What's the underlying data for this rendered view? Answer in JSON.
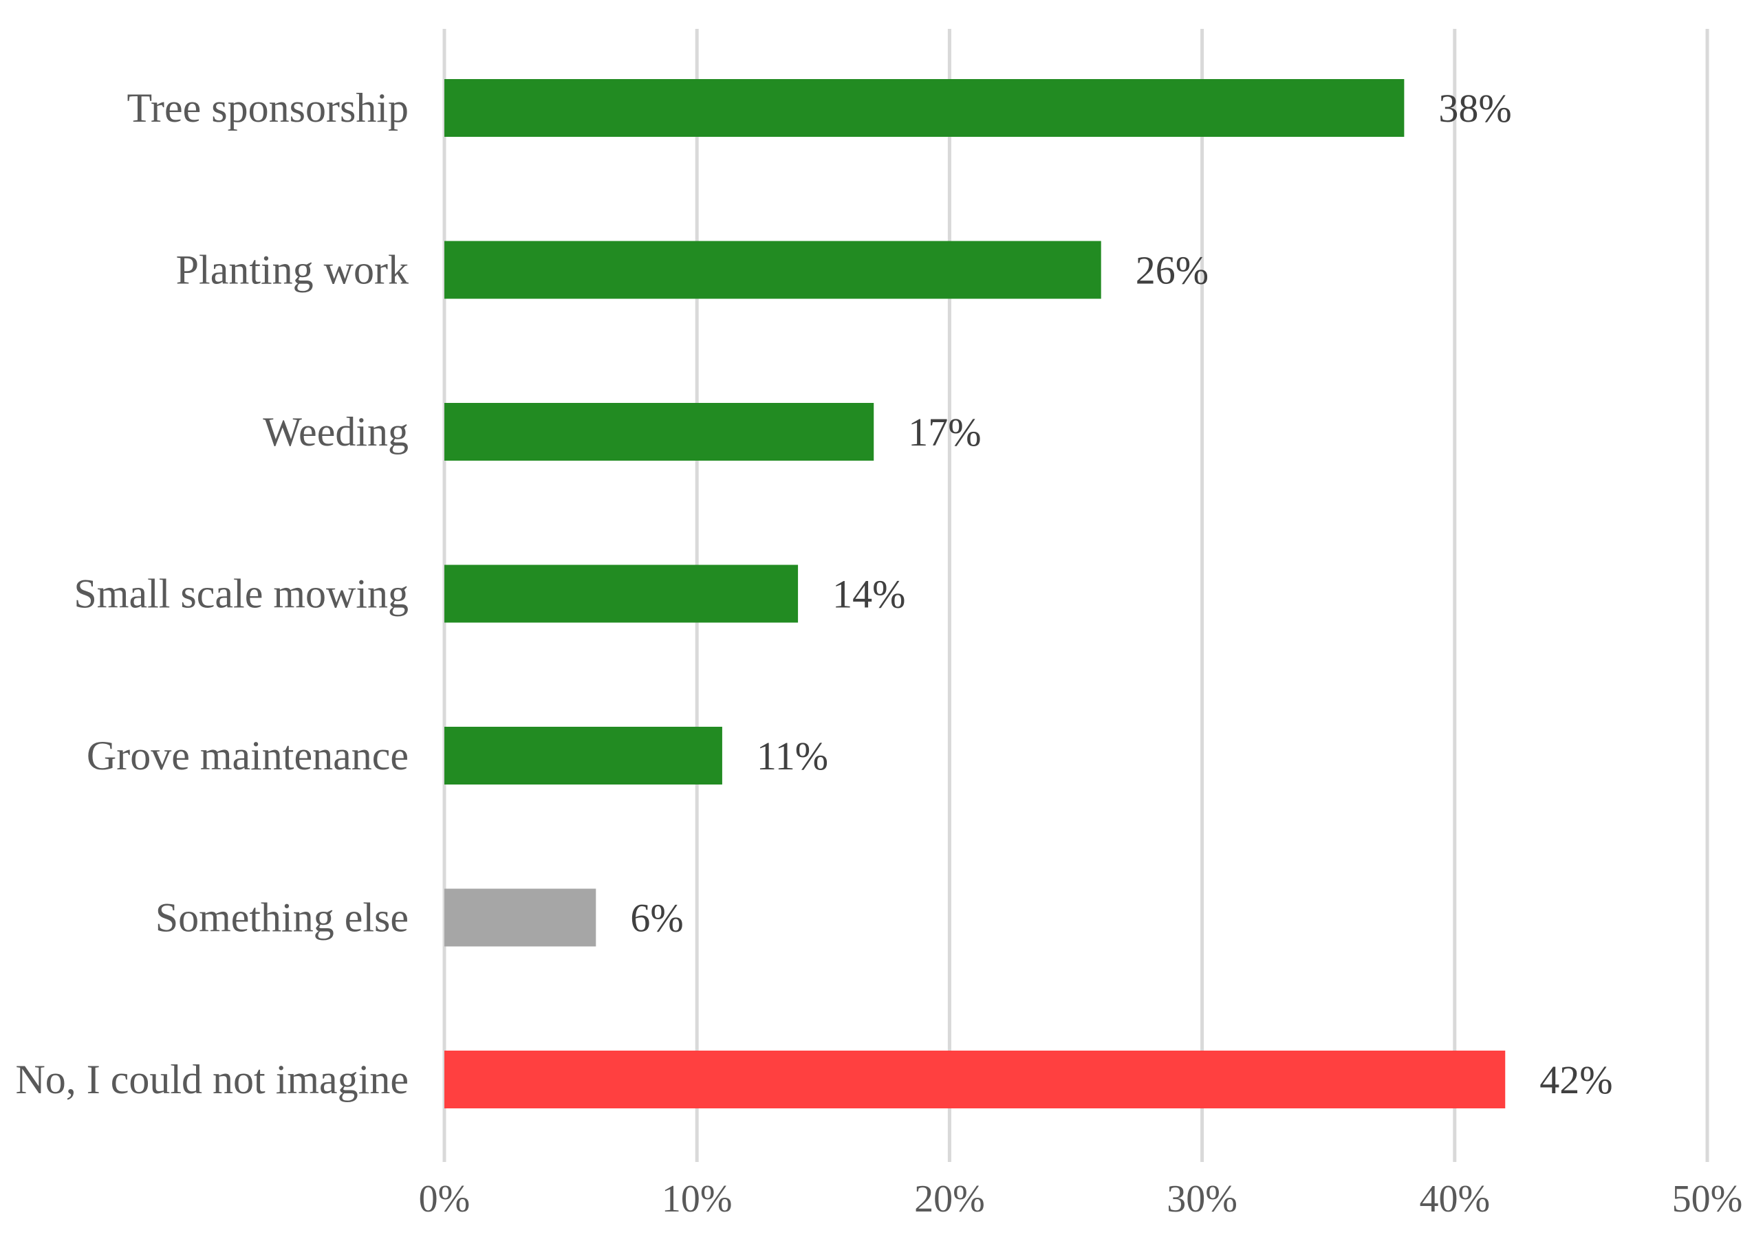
{
  "chart_data": {
    "type": "bar",
    "orientation": "horizontal",
    "categories": [
      "Tree sponsorship",
      "Planting work",
      "Weeding",
      "Small scale mowing",
      "Grove maintenance",
      "Something else",
      "No, I could not imagine"
    ],
    "values": [
      38,
      26,
      17,
      14,
      11,
      6,
      42
    ],
    "value_labels": [
      "38%",
      "26%",
      "17%",
      "14%",
      "11%",
      "6%",
      "42%"
    ],
    "bar_colors": [
      "#228B22",
      "#228B22",
      "#228B22",
      "#228B22",
      "#228B22",
      "#A6A6A6",
      "#FF4040"
    ],
    "xlim": [
      0,
      50
    ],
    "x_ticks": [
      0,
      10,
      20,
      30,
      40,
      50
    ],
    "x_tick_labels": [
      "0%",
      "10%",
      "20%",
      "30%",
      "40%",
      "50%"
    ],
    "grid": "vertical",
    "grid_color": "#D9D9D9",
    "title": "",
    "xlabel": "",
    "ylabel": ""
  }
}
